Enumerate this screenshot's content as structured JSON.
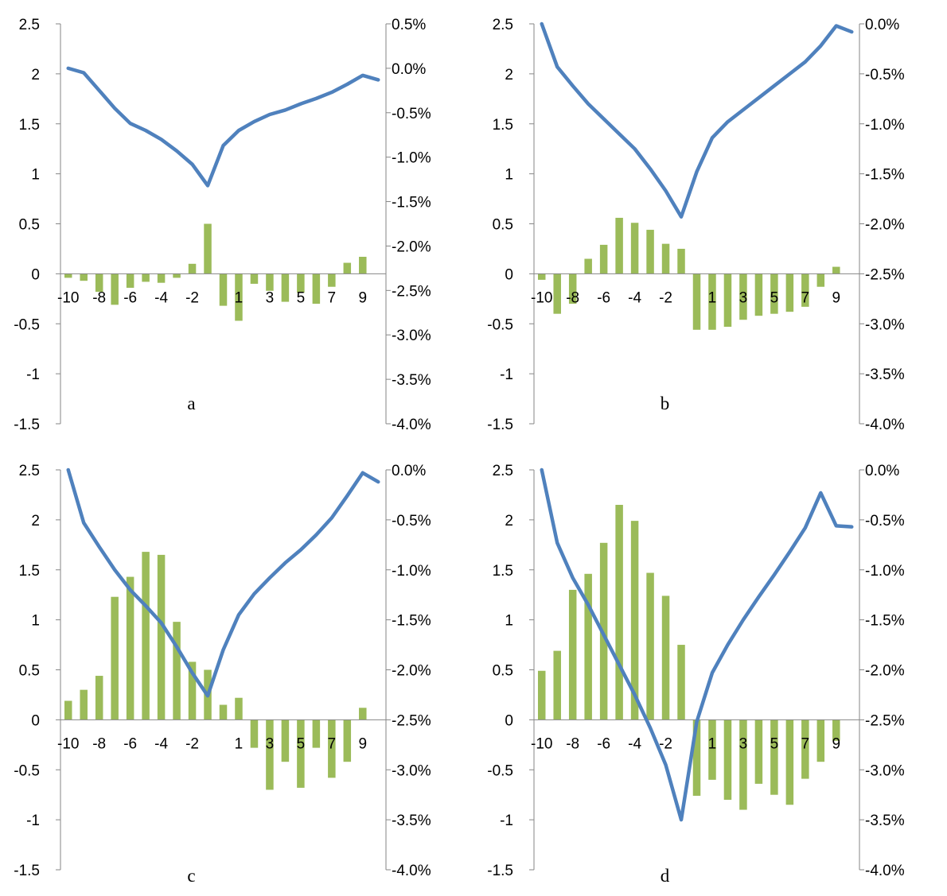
{
  "colors": {
    "line": "#4F81BD",
    "bar": "#9BBB59",
    "axis": "#868686"
  },
  "chart_data": [
    {
      "type": "bar",
      "label": "a",
      "categories": [
        "-10",
        "-9",
        "-8",
        "-7",
        "-6",
        "-5",
        "-4",
        "-3",
        "-2",
        "-1",
        "0",
        "1",
        "2",
        "3",
        "4",
        "5",
        "6",
        "7",
        "8",
        "9",
        "10"
      ],
      "x_tick_labels": [
        "-10",
        "-8",
        "-6",
        "-4",
        "-2",
        "1",
        "3",
        "5",
        "7",
        "9"
      ],
      "ylim": [
        -1.5,
        2.5
      ],
      "y_ticks": [
        "-1.5",
        "-1",
        "-0.5",
        "0",
        "0.5",
        "1",
        "1.5",
        "2",
        "2.5"
      ],
      "y2lim": [
        -4.0,
        0.5
      ],
      "y2_ticks": [
        "-4.0%",
        "-3.5%",
        "-3.0%",
        "-2.5%",
        "-2.0%",
        "-1.5%",
        "-1.0%",
        "-0.5%",
        "0.0%",
        "0.5%"
      ],
      "series": [
        {
          "type": "bar",
          "axis": "left",
          "values": [
            -0.04,
            -0.07,
            -0.18,
            -0.31,
            -0.14,
            -0.08,
            -0.09,
            -0.04,
            0.1,
            0.5,
            -0.32,
            -0.47,
            -0.1,
            -0.17,
            -0.28,
            -0.19,
            -0.3,
            -0.13,
            0.11,
            0.17,
            0.0
          ]
        },
        {
          "type": "line",
          "axis": "right",
          "values": [
            0.0,
            -0.05,
            -0.25,
            -0.45,
            -0.62,
            -0.7,
            -0.8,
            -0.93,
            -1.08,
            -1.32,
            -0.87,
            -0.7,
            -0.6,
            -0.52,
            -0.47,
            -0.4,
            -0.34,
            -0.27,
            -0.18,
            -0.08,
            -0.13
          ]
        }
      ]
    },
    {
      "type": "bar",
      "label": "b",
      "categories": [
        "-10",
        "-9",
        "-8",
        "-7",
        "-6",
        "-5",
        "-4",
        "-3",
        "-2",
        "-1",
        "0",
        "1",
        "2",
        "3",
        "4",
        "5",
        "6",
        "7",
        "8",
        "9",
        "10"
      ],
      "x_tick_labels": [
        "-10",
        "-8",
        "-6",
        "-4",
        "-2",
        "1",
        "3",
        "5",
        "7",
        "9"
      ],
      "ylim": [
        -1.5,
        2.5
      ],
      "y_ticks": [
        "-1.5",
        "-1",
        "-0.5",
        "0",
        "0.5",
        "1",
        "1.5",
        "2",
        "2.5"
      ],
      "y2lim": [
        -4.0,
        0.0
      ],
      "y2_ticks": [
        "-4.0%",
        "-3.5%",
        "-3.0%",
        "-2.5%",
        "-2.0%",
        "-1.5%",
        "-1.0%",
        "-0.5%",
        "0.0%"
      ],
      "series": [
        {
          "type": "bar",
          "axis": "left",
          "values": [
            -0.06,
            -0.4,
            -0.3,
            0.15,
            0.29,
            0.56,
            0.51,
            0.44,
            0.3,
            0.25,
            -0.56,
            -0.56,
            -0.53,
            -0.46,
            -0.42,
            -0.4,
            -0.38,
            -0.33,
            -0.13,
            0.07,
            0.0
          ]
        },
        {
          "type": "line",
          "axis": "right",
          "values": [
            0.0,
            -0.43,
            -0.62,
            -0.8,
            -0.95,
            -1.1,
            -1.25,
            -1.45,
            -1.67,
            -1.93,
            -1.48,
            -1.14,
            -0.98,
            -0.86,
            -0.74,
            -0.62,
            -0.5,
            -0.38,
            -0.22,
            -0.02,
            -0.08
          ]
        }
      ]
    },
    {
      "type": "bar",
      "label": "c",
      "categories": [
        "-10",
        "-9",
        "-8",
        "-7",
        "-6",
        "-5",
        "-4",
        "-3",
        "-2",
        "-1",
        "0",
        "1",
        "2",
        "3",
        "4",
        "5",
        "6",
        "7",
        "8",
        "9",
        "10"
      ],
      "x_tick_labels": [
        "-10",
        "-8",
        "-6",
        "-4",
        "-2",
        "1",
        "3",
        "5",
        "7",
        "9"
      ],
      "ylim": [
        -1.5,
        2.5
      ],
      "y_ticks": [
        "-1.5",
        "-1",
        "-0.5",
        "0",
        "0.5",
        "1",
        "1.5",
        "2",
        "2.5"
      ],
      "y2lim": [
        -4.0,
        0.0
      ],
      "y2_ticks": [
        "-4.0%",
        "-3.5%",
        "-3.0%",
        "-2.5%",
        "-2.0%",
        "-1.5%",
        "-1.0%",
        "-0.5%",
        "0.0%"
      ],
      "series": [
        {
          "type": "bar",
          "axis": "left",
          "values": [
            0.19,
            0.3,
            0.44,
            1.23,
            1.43,
            1.68,
            1.65,
            0.98,
            0.58,
            0.5,
            0.15,
            0.22,
            -0.28,
            -0.7,
            -0.42,
            -0.68,
            -0.28,
            -0.58,
            -0.42,
            0.12,
            0.0
          ]
        },
        {
          "type": "line",
          "axis": "right",
          "values": [
            0.0,
            -0.53,
            -0.77,
            -1.0,
            -1.2,
            -1.36,
            -1.53,
            -1.77,
            -2.03,
            -2.26,
            -1.8,
            -1.45,
            -1.24,
            -1.08,
            -0.93,
            -0.8,
            -0.65,
            -0.48,
            -0.26,
            -0.03,
            -0.12
          ]
        }
      ]
    },
    {
      "type": "bar",
      "label": "d",
      "categories": [
        "-10",
        "-9",
        "-8",
        "-7",
        "-6",
        "-5",
        "-4",
        "-3",
        "-2",
        "-1",
        "0",
        "1",
        "2",
        "3",
        "4",
        "5",
        "6",
        "7",
        "8",
        "9",
        "10"
      ],
      "x_tick_labels": [
        "-10",
        "-8",
        "-6",
        "-4",
        "-2",
        "1",
        "3",
        "5",
        "7",
        "9"
      ],
      "ylim": [
        -1.5,
        2.5
      ],
      "y_ticks": [
        "-1.5",
        "-1",
        "-0.5",
        "0",
        "0.5",
        "1",
        "1.5",
        "2",
        "2.5"
      ],
      "y2lim": [
        -4.0,
        0.0
      ],
      "y2_ticks": [
        "-4.0%",
        "-3.5%",
        "-3.0%",
        "-2.5%",
        "-2.0%",
        "-1.5%",
        "-1.0%",
        "-0.5%",
        "0.0%"
      ],
      "series": [
        {
          "type": "bar",
          "axis": "left",
          "values": [
            0.49,
            0.69,
            1.3,
            1.46,
            1.77,
            2.15,
            1.99,
            1.47,
            1.24,
            0.75,
            -0.76,
            -0.6,
            -0.8,
            -0.9,
            -0.64,
            -0.75,
            -0.85,
            -0.59,
            -0.42,
            -0.21,
            0.0
          ]
        },
        {
          "type": "line",
          "axis": "right",
          "values": [
            0.0,
            -0.73,
            -1.08,
            -1.35,
            -1.65,
            -1.95,
            -2.25,
            -2.58,
            -2.95,
            -3.5,
            -2.52,
            -2.03,
            -1.75,
            -1.5,
            -1.27,
            -1.05,
            -0.82,
            -0.58,
            -0.23,
            -0.56,
            -0.57
          ]
        }
      ]
    }
  ]
}
